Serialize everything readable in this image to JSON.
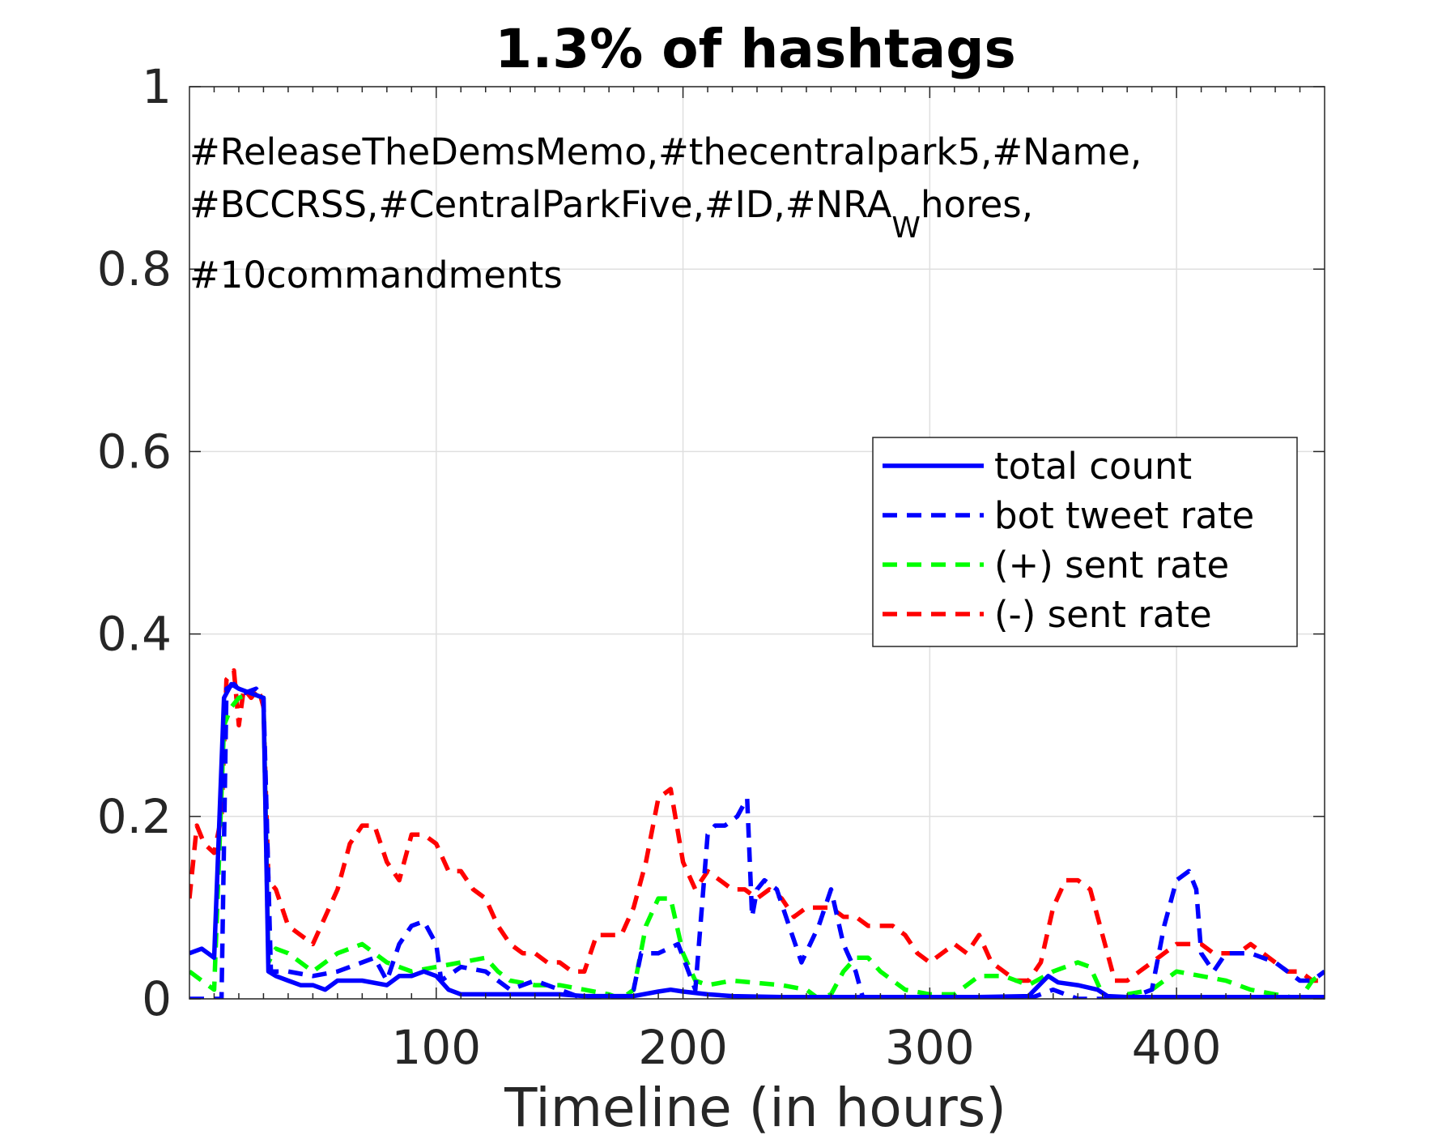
{
  "chart_data": {
    "type": "line",
    "title": "1.3% of hashtags",
    "xlabel": "Timeline (in hours)",
    "ylabel": "",
    "xlim": [
      0,
      460
    ],
    "ylim": [
      0,
      1
    ],
    "xticks": [
      100,
      200,
      300,
      400
    ],
    "xtick_labels": [
      "100",
      "200",
      "300",
      "400"
    ],
    "yticks": [
      0,
      0.2,
      0.4,
      0.6,
      0.8,
      1
    ],
    "ytick_labels": [
      "0",
      "0.2",
      "0.4",
      "0.6",
      "0.8",
      "1"
    ],
    "grid": true,
    "legend_position": "right",
    "annotation": {
      "lines": [
        "#ReleaseTheDemsMemo,#thecentralpark5,#Name,",
        "#BCCRSS,#CentralParkFive,#ID,#NRA",
        "#10commandments"
      ],
      "subscript": "W",
      "line2_suffix": "hores,"
    },
    "series": [
      {
        "name": "total count",
        "color": "#0000ff",
        "style": "solid",
        "x": [
          0,
          5,
          10,
          14,
          17,
          20,
          25,
          30,
          32,
          35,
          40,
          45,
          50,
          55,
          60,
          70,
          80,
          85,
          90,
          95,
          100,
          105,
          110,
          120,
          130,
          140,
          150,
          160,
          170,
          180,
          190,
          195,
          200,
          210,
          220,
          240,
          260,
          280,
          300,
          320,
          340,
          348,
          352,
          360,
          368,
          372,
          380,
          400,
          420,
          440,
          455,
          460
        ],
        "values": [
          0.05,
          0.055,
          0.045,
          0.33,
          0.345,
          0.34,
          0.335,
          0.33,
          0.03,
          0.025,
          0.02,
          0.015,
          0.015,
          0.01,
          0.02,
          0.02,
          0.015,
          0.025,
          0.025,
          0.03,
          0.025,
          0.01,
          0.005,
          0.005,
          0.005,
          0.005,
          0.005,
          0.003,
          0.003,
          0.003,
          0.008,
          0.01,
          0.008,
          0.005,
          0.003,
          0.002,
          0.002,
          0.002,
          0.002,
          0.002,
          0.003,
          0.025,
          0.018,
          0.015,
          0.01,
          0.003,
          0.002,
          0.002,
          0.002,
          0.002,
          0.002,
          0.002
        ]
      },
      {
        "name": "bot tweet rate",
        "color": "#0000ff",
        "style": "dashed",
        "x": [
          0,
          13,
          15,
          18,
          22,
          27,
          30,
          33,
          40,
          50,
          60,
          70,
          75,
          80,
          85,
          90,
          95,
          100,
          102,
          110,
          120,
          130,
          140,
          150,
          160,
          170,
          175,
          180,
          183,
          190,
          198,
          205,
          210,
          213,
          217,
          222,
          226,
          228,
          230,
          233,
          238,
          243,
          248,
          255,
          260,
          265,
          270,
          273,
          280,
          290,
          300,
          310,
          320,
          330,
          340,
          350,
          360,
          370,
          380,
          390,
          395,
          400,
          405,
          408,
          410,
          415,
          420,
          430,
          440,
          450,
          455,
          460
        ],
        "values": [
          0,
          0,
          0.34,
          0.345,
          0.335,
          0.34,
          0.33,
          0.03,
          0.03,
          0.025,
          0.03,
          0.04,
          0.045,
          0.02,
          0.06,
          0.08,
          0.085,
          0.06,
          0.02,
          0.035,
          0.03,
          0.01,
          0.02,
          0.01,
          0,
          0,
          0,
          0.01,
          0.05,
          0.05,
          0.06,
          0.01,
          0.18,
          0.19,
          0.19,
          0.2,
          0.22,
          0.09,
          0.12,
          0.13,
          0.12,
          0.08,
          0.04,
          0.08,
          0.12,
          0.06,
          0.03,
          0,
          0,
          0,
          0,
          0,
          0,
          0,
          0,
          0.01,
          0,
          0,
          0,
          0.01,
          0.08,
          0.13,
          0.14,
          0.12,
          0.05,
          0.03,
          0.05,
          0.05,
          0.04,
          0.02,
          0.02,
          0.03
        ]
      },
      {
        "name": "(+) sent rate",
        "color": "#00ff00",
        "style": "dashed",
        "x": [
          0,
          5,
          10,
          14,
          17,
          20,
          25,
          30,
          32,
          35,
          40,
          45,
          50,
          55,
          60,
          70,
          75,
          80,
          90,
          100,
          110,
          120,
          125,
          130,
          140,
          150,
          160,
          170,
          175,
          180,
          185,
          190,
          195,
          200,
          205,
          210,
          220,
          240,
          250,
          255,
          260,
          265,
          270,
          275,
          280,
          290,
          300,
          310,
          320,
          330,
          340,
          350,
          360,
          365,
          370,
          375,
          380,
          390,
          400,
          410,
          420,
          430,
          440,
          450,
          455,
          460
        ],
        "values": [
          0.03,
          0.02,
          0.01,
          0.3,
          0.32,
          0.33,
          0.335,
          0.33,
          0.04,
          0.055,
          0.05,
          0.04,
          0.03,
          0.04,
          0.05,
          0.06,
          0.05,
          0.04,
          0.03,
          0.035,
          0.04,
          0.045,
          0.03,
          0.02,
          0.015,
          0.015,
          0.01,
          0.005,
          0,
          0.01,
          0.08,
          0.11,
          0.11,
          0.05,
          0.02,
          0.015,
          0.02,
          0.015,
          0.01,
          0,
          0.005,
          0.03,
          0.045,
          0.045,
          0.03,
          0.01,
          0.005,
          0.005,
          0.025,
          0.025,
          0.015,
          0.03,
          0.04,
          0.035,
          0.005,
          0,
          0.005,
          0.01,
          0.03,
          0.025,
          0.02,
          0.01,
          0.005,
          0,
          0.02,
          0.03
        ]
      },
      {
        "name": "(-) sent rate",
        "color": "#ff0000",
        "style": "dashed",
        "x": [
          0,
          3,
          6,
          10,
          13,
          15,
          18,
          20,
          22,
          25,
          28,
          30,
          32,
          35,
          40,
          45,
          50,
          55,
          60,
          65,
          70,
          75,
          80,
          85,
          90,
          95,
          100,
          105,
          110,
          115,
          120,
          125,
          130,
          135,
          140,
          145,
          150,
          155,
          160,
          165,
          170,
          175,
          180,
          185,
          190,
          195,
          200,
          205,
          210,
          215,
          220,
          225,
          230,
          235,
          240,
          245,
          250,
          255,
          260,
          265,
          270,
          275,
          280,
          285,
          290,
          295,
          300,
          305,
          310,
          315,
          320,
          325,
          330,
          335,
          340,
          345,
          350,
          355,
          360,
          365,
          370,
          375,
          380,
          385,
          390,
          395,
          400,
          405,
          410,
          415,
          420,
          425,
          430,
          435,
          440,
          445,
          450,
          455,
          460
        ],
        "values": [
          0.11,
          0.19,
          0.17,
          0.16,
          0.2,
          0.35,
          0.36,
          0.3,
          0.34,
          0.33,
          0.34,
          0.32,
          0.13,
          0.12,
          0.08,
          0.07,
          0.06,
          0.09,
          0.12,
          0.17,
          0.19,
          0.19,
          0.15,
          0.13,
          0.18,
          0.18,
          0.17,
          0.14,
          0.14,
          0.12,
          0.11,
          0.08,
          0.06,
          0.05,
          0.05,
          0.04,
          0.04,
          0.03,
          0.03,
          0.07,
          0.07,
          0.07,
          0.1,
          0.15,
          0.22,
          0.23,
          0.15,
          0.12,
          0.14,
          0.13,
          0.12,
          0.12,
          0.11,
          0.12,
          0.11,
          0.09,
          0.1,
          0.1,
          0.1,
          0.09,
          0.09,
          0.08,
          0.08,
          0.08,
          0.07,
          0.05,
          0.04,
          0.05,
          0.06,
          0.05,
          0.07,
          0.04,
          0.03,
          0.02,
          0.02,
          0.04,
          0.1,
          0.13,
          0.13,
          0.12,
          0.07,
          0.02,
          0.02,
          0.03,
          0.04,
          0.05,
          0.06,
          0.06,
          0.06,
          0.05,
          0.05,
          0.05,
          0.06,
          0.05,
          0.04,
          0.03,
          0.03,
          0.02,
          0.02
        ]
      }
    ]
  }
}
